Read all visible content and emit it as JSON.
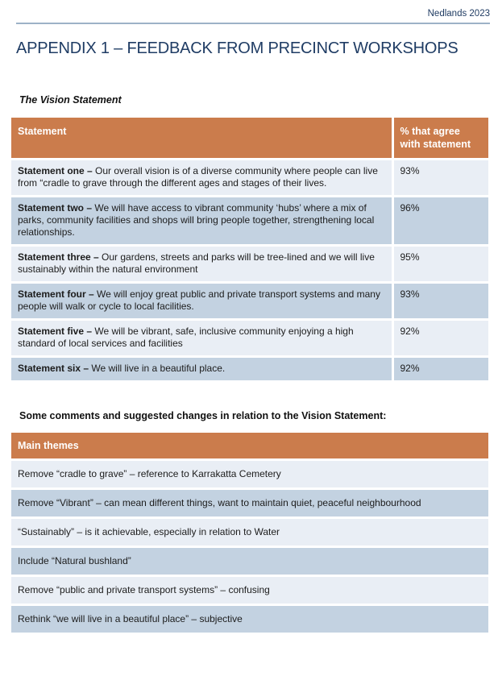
{
  "page": {
    "header_right": "Nedlands 2023",
    "title": "APPENDIX 1 – FEEDBACK FROM PRECINCT WORKSHOPS",
    "vision_heading": "The Vision Statement",
    "comments_heading": "Some comments and suggested changes in relation to the Vision Statement:"
  },
  "colors": {
    "accent_orange": "#cb7c4c",
    "row_light": "#e9eef5",
    "row_dark": "#c3d2e1",
    "navy_text": "#1f3c64",
    "rule_blue": "#9db2c7"
  },
  "vision_table": {
    "col_statement_header": "Statement",
    "col_pct_header": "% that agree with statement",
    "rows": [
      {
        "label": "Statement one –",
        "text": " Our overall vision is of a diverse community where people can live from “cradle to grave through the different ages and stages of their lives.",
        "pct": "93%"
      },
      {
        "label": "Statement two –",
        "text": " We will have access to vibrant community ‘hubs’ where a mix of parks, community facilities and shops will bring people together, strengthening local relationships.",
        "pct": "96%"
      },
      {
        "label": "Statement three –",
        "text": " Our gardens, streets and parks will be tree-lined and we will live sustainably within the natural environment",
        "pct": "95%"
      },
      {
        "label": "Statement four –",
        "text": " We will enjoy great public and private transport systems and many people will walk or cycle to local facilities.",
        "pct": "93%"
      },
      {
        "label": "Statement five –",
        "text": " We will be vibrant, safe, inclusive community enjoying a high standard of local services and facilities",
        "pct": "92%"
      },
      {
        "label": "Statement six –",
        "text": " We will live in a beautiful place.",
        "pct": "92%"
      }
    ]
  },
  "comments_table": {
    "header": "Main themes",
    "rows": [
      "Remove “cradle to grave” – reference to Karrakatta Cemetery",
      "Remove “Vibrant” – can mean different things, want to maintain quiet, peaceful neighbourhood",
      "“Sustainably” – is it achievable, especially in relation to Water",
      "Include “Natural bushland”",
      "Remove “public and private transport systems” – confusing",
      "Rethink “we will live in a beautiful place” – subjective"
    ]
  }
}
